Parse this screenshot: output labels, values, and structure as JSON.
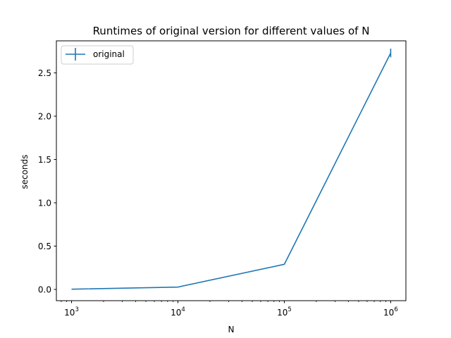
{
  "chart_data": {
    "type": "line",
    "title": "Runtimes of original version for different values of N",
    "xlabel": "N",
    "ylabel": "seconds",
    "xscale": "log",
    "xlim": [
      720,
      1390000
    ],
    "ylim": [
      -0.13,
      2.87
    ],
    "x_ticks": [
      {
        "value": 1000,
        "base": "10",
        "exp": "3"
      },
      {
        "value": 10000,
        "base": "10",
        "exp": "4"
      },
      {
        "value": 100000,
        "base": "10",
        "exp": "5"
      },
      {
        "value": 1000000,
        "base": "10",
        "exp": "6"
      }
    ],
    "y_ticks": [
      {
        "value": 0.0,
        "label": "0.0"
      },
      {
        "value": 0.5,
        "label": "0.5"
      },
      {
        "value": 1.0,
        "label": "1.0"
      },
      {
        "value": 1.5,
        "label": "1.5"
      },
      {
        "value": 2.0,
        "label": "2.0"
      },
      {
        "value": 2.5,
        "label": "2.5"
      }
    ],
    "series": [
      {
        "name": "original",
        "color": "#1f77b4",
        "x": [
          1000,
          10000,
          100000,
          1000000
        ],
        "y": [
          0.003,
          0.027,
          0.29,
          2.73
        ],
        "yerr": [
          0.0,
          0.0,
          0.0,
          0.05
        ]
      }
    ],
    "legend": {
      "position": "top-left"
    },
    "grid": false
  }
}
